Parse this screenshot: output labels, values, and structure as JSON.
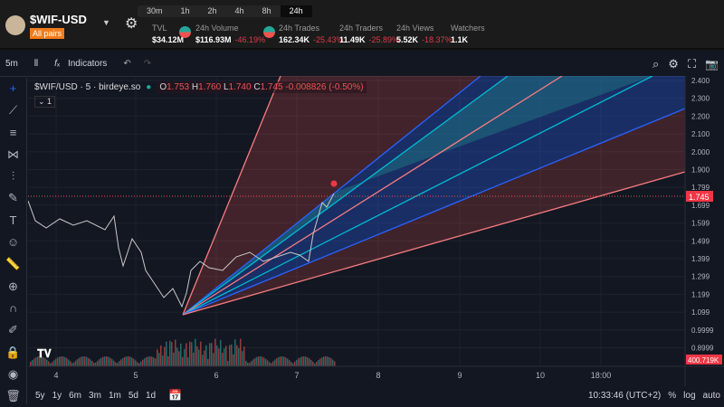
{
  "header": {
    "pair": "$WIF-USD",
    "all_pairs": "All pairs",
    "timeframes": [
      "30m",
      "1h",
      "2h",
      "4h",
      "8h",
      "24h"
    ],
    "active_timeframe": "24h",
    "stats": [
      {
        "label": "TVL",
        "value": "$34.12M",
        "change": ""
      },
      {
        "label": "24h Volume",
        "value": "$116.93M",
        "change": "-46.19%"
      },
      {
        "label": "24h Trades",
        "value": "162.34K",
        "change": "-25.43%"
      },
      {
        "label": "24h Traders",
        "value": "11.49K",
        "change": "-25.89%"
      },
      {
        "label": "24h Views",
        "value": "5.52K",
        "change": "-18.37%"
      },
      {
        "label": "Watchers",
        "value": "1.1K",
        "change": ""
      }
    ]
  },
  "toolbar": {
    "interval": "5m",
    "indicators": "Indicators"
  },
  "legend": {
    "symbol": "$WIF/USD · 5 · birdeye.so",
    "o_label": "O",
    "o": "1.753",
    "h_label": "H",
    "h": "1.760",
    "l_label": "L",
    "l": "1.740",
    "c_label": "C",
    "c": "1.745",
    "change": "-0.008826 (-0.50%)",
    "sub": "1"
  },
  "price_axis": [
    "2.400",
    "2.300",
    "2.200",
    "2.100",
    "2.000",
    "1.900",
    "1.799",
    "1.699",
    "1.599",
    "1.499",
    "1.399",
    "1.299",
    "1.199",
    "1.099",
    "0.9999",
    "0.8999"
  ],
  "current_price": "1.745",
  "volume_label": "400.719K",
  "time_axis": [
    "4",
    "5",
    "6",
    "7",
    "8",
    "9",
    "10",
    "18:00"
  ],
  "bottom": {
    "ranges": [
      "5y",
      "1y",
      "6m",
      "3m",
      "1m",
      "5d",
      "1d"
    ],
    "clock": "10:33:46 (UTC+2)",
    "pct": "%",
    "log": "log",
    "auto": "auto"
  },
  "colors": {
    "up": "#26a69a",
    "down": "#ef5350",
    "accent": "#2962ff"
  }
}
